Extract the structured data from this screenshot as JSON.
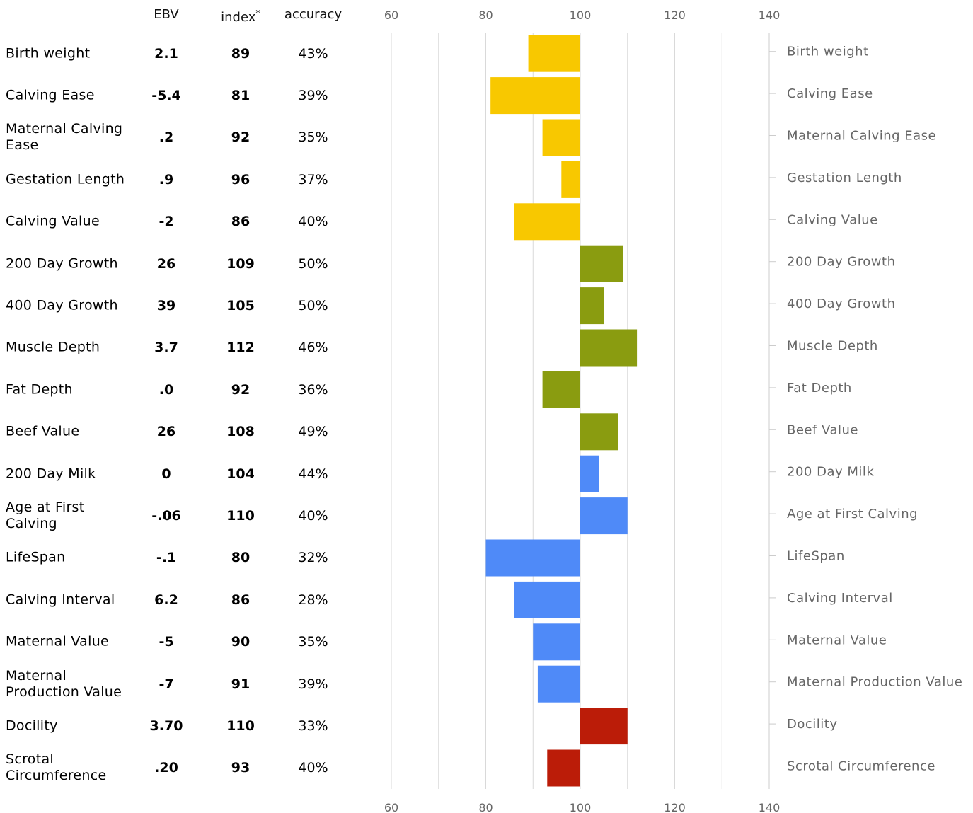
{
  "headers": {
    "ebv": "EBV",
    "index": "index",
    "index_mark": "*",
    "accuracy": "accuracy"
  },
  "rows": [
    {
      "trait": "Birth weight",
      "ebv": "2.1",
      "index": "89",
      "accuracy": "43%"
    },
    {
      "trait": "Calving Ease",
      "ebv": "-5.4",
      "index": "81",
      "accuracy": "39%"
    },
    {
      "trait": "Maternal Calving Ease",
      "ebv": ".2",
      "index": "92",
      "accuracy": "35%"
    },
    {
      "trait": "Gestation Length",
      "ebv": ".9",
      "index": "96",
      "accuracy": "37%"
    },
    {
      "trait": "Calving Value",
      "ebv": "-2",
      "index": "86",
      "accuracy": "40%"
    },
    {
      "trait": "200 Day Growth",
      "ebv": "26",
      "index": "109",
      "accuracy": "50%"
    },
    {
      "trait": "400 Day Growth",
      "ebv": "39",
      "index": "105",
      "accuracy": "50%"
    },
    {
      "trait": "Muscle Depth",
      "ebv": "3.7",
      "index": "112",
      "accuracy": "46%"
    },
    {
      "trait": "Fat Depth",
      "ebv": ".0",
      "index": "92",
      "accuracy": "36%"
    },
    {
      "trait": "Beef Value",
      "ebv": "26",
      "index": "108",
      "accuracy": "49%"
    },
    {
      "trait": "200 Day Milk",
      "ebv": "0",
      "index": "104",
      "accuracy": "44%"
    },
    {
      "trait": "Age at First Calving",
      "ebv": "-.06",
      "index": "110",
      "accuracy": "40%"
    },
    {
      "trait": "LifeSpan",
      "ebv": "-.1",
      "index": "80",
      "accuracy": "32%"
    },
    {
      "trait": "Calving Interval",
      "ebv": "6.2",
      "index": "86",
      "accuracy": "28%"
    },
    {
      "trait": "Maternal Value",
      "ebv": "-5",
      "index": "90",
      "accuracy": "35%"
    },
    {
      "trait": "Maternal Production Value",
      "ebv": "-7",
      "index": "91",
      "accuracy": "39%"
    },
    {
      "trait": "Docility",
      "ebv": "3.70",
      "index": "110",
      "accuracy": "33%"
    },
    {
      "trait": "Scrotal Circumference",
      "ebv": ".20",
      "index": "93",
      "accuracy": "40%"
    }
  ],
  "chart_data": {
    "type": "bar",
    "orientation": "horizontal",
    "baseline": 100,
    "xlim": [
      60,
      140
    ],
    "ticks": [
      60,
      80,
      100,
      120,
      140
    ],
    "gridlines": [
      60,
      70,
      80,
      90,
      100,
      110,
      120,
      130
    ],
    "grid": true,
    "categories": [
      "Birth weight",
      "Calving Ease",
      "Maternal Calving Ease",
      "Gestation Length",
      "Calving Value",
      "200 Day Growth",
      "400 Day Growth",
      "Muscle Depth",
      "Fat Depth",
      "Beef Value",
      "200 Day Milk",
      "Age at First Calving",
      "LifeSpan",
      "Calving Interval",
      "Maternal Value",
      "Maternal Production Value",
      "Docility",
      "Scrotal Circumference"
    ],
    "values": [
      89,
      81,
      92,
      96,
      86,
      109,
      105,
      112,
      92,
      108,
      104,
      110,
      80,
      86,
      90,
      91,
      110,
      93
    ],
    "colors": [
      "#F8C800",
      "#F8C800",
      "#F8C800",
      "#F8C800",
      "#F8C800",
      "#8A9C10",
      "#8A9C10",
      "#8A9C10",
      "#8A9C10",
      "#8A9C10",
      "#4F8AF8",
      "#4F8AF8",
      "#4F8AF8",
      "#4F8AF8",
      "#4F8AF8",
      "#4F8AF8",
      "#BB1C08",
      "#BB1C08"
    ]
  }
}
